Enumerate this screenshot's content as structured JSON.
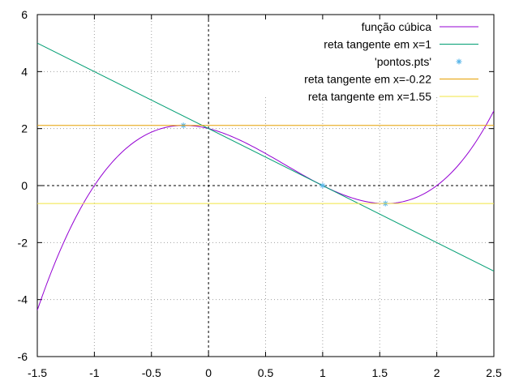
{
  "chart_data": {
    "type": "line",
    "xlim": [
      -1.5,
      2.5
    ],
    "ylim": [
      -6,
      6
    ],
    "xticks": [
      "-1.5",
      "-1",
      "-0.5",
      "0",
      "0.5",
      "1",
      "1.5",
      "2",
      "2.5"
    ],
    "yticks": [
      "-6",
      "-4",
      "-2",
      "0",
      "2",
      "4",
      "6"
    ],
    "grid": true,
    "legend_position": "top-right",
    "series": [
      {
        "name": "função cúbica",
        "color": "#9400d3",
        "style": "line",
        "expression": "x^3 - 2x^2 - x + 2",
        "x": [
          -1.5,
          -1.25,
          -1,
          -0.75,
          -0.5,
          -0.22,
          0,
          0.25,
          0.5,
          0.75,
          1,
          1.25,
          1.55,
          1.75,
          2,
          2.25,
          2.5
        ],
        "y": [
          -4.375,
          -1.92,
          0,
          1.2,
          1.875,
          2.11,
          2,
          1.64,
          1.125,
          0.55,
          0,
          -0.42,
          -0.63,
          -0.52,
          0,
          0.89,
          2.625
        ]
      },
      {
        "name": "reta tangente em x=1",
        "color": "#009e73",
        "style": "line",
        "x": [
          -1.5,
          2.5
        ],
        "y": [
          5,
          -3
        ]
      },
      {
        "name": "'pontos.pts'",
        "color": "#56b4e9",
        "style": "points",
        "marker": "star",
        "x": [
          -0.22,
          1,
          1.55
        ],
        "y": [
          2.11,
          0,
          -0.63
        ]
      },
      {
        "name": "reta tangente em x=-0.22",
        "color": "#e69f00",
        "style": "line",
        "x": [
          -1.5,
          2.5
        ],
        "y": [
          2.11,
          2.11
        ]
      },
      {
        "name": "reta tangente em x=1.55",
        "color": "#f0e442",
        "style": "line",
        "x": [
          -1.5,
          2.5
        ],
        "y": [
          -0.63,
          -0.63
        ]
      }
    ]
  }
}
